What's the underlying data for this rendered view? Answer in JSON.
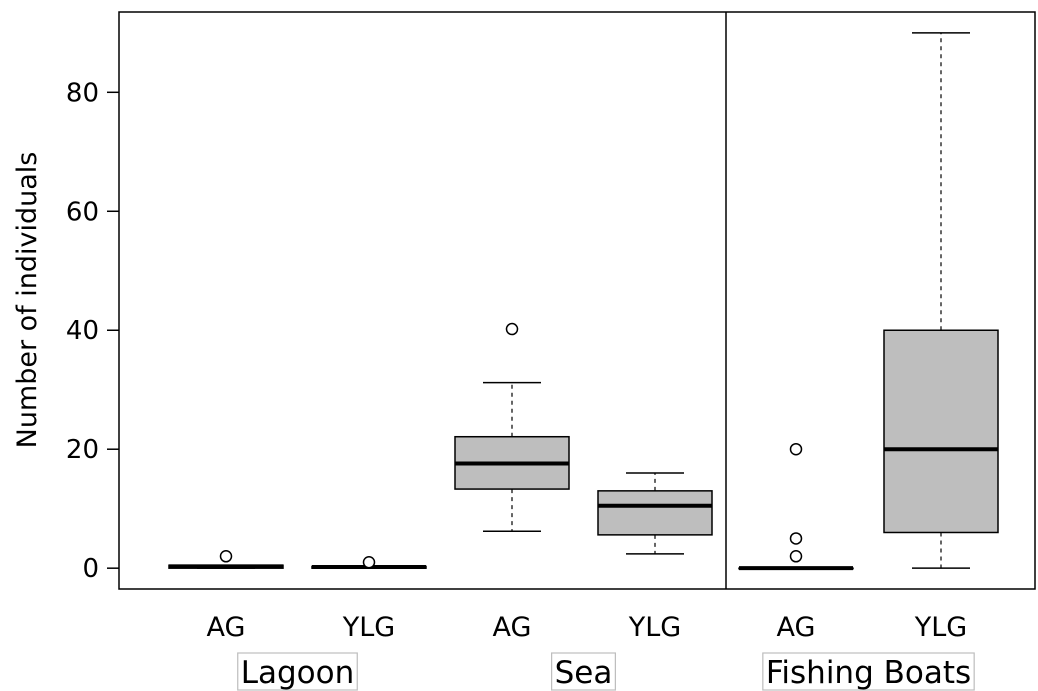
{
  "chart_data": {
    "type": "box",
    "ylabel": "Number of individuals",
    "xlabel": "",
    "ylim": [
      -3.5,
      93.5
    ],
    "yticks": [
      0,
      20,
      40,
      60,
      80
    ],
    "grid": false,
    "box_color": "#bebebe",
    "groups": [
      {
        "label": "Lagoon",
        "boxes": [
          0,
          1
        ]
      },
      {
        "label": "Sea",
        "boxes": [
          2,
          3
        ]
      },
      {
        "label": "Fishing Boats",
        "boxes": [
          4,
          5
        ]
      }
    ],
    "boxes": [
      {
        "label": "AG",
        "group": "Lagoon",
        "whisker_low": 0,
        "q1": 0,
        "median": 0.3,
        "q3": 0.5,
        "whisker_high": 0.5,
        "outliers": [
          2
        ]
      },
      {
        "label": "YLG",
        "group": "Lagoon",
        "whisker_low": 0,
        "q1": 0,
        "median": 0.2,
        "q3": 0.3,
        "whisker_high": 0.3,
        "outliers": [
          1
        ]
      },
      {
        "label": "AG",
        "group": "Sea",
        "whisker_low": 6.2,
        "q1": 13.3,
        "median": 17.6,
        "q3": 22.1,
        "whisker_high": 31.2,
        "outliers": [
          40.2
        ]
      },
      {
        "label": "YLG",
        "group": "Sea",
        "whisker_low": 2.4,
        "q1": 5.6,
        "median": 10.5,
        "q3": 13.0,
        "whisker_high": 16.0,
        "outliers": []
      },
      {
        "label": "AG",
        "group": "Fishing Boats",
        "whisker_low": 0,
        "q1": 0,
        "median": 0,
        "q3": 0,
        "whisker_high": 0,
        "outliers": [
          2,
          5,
          20
        ]
      },
      {
        "label": "YLG",
        "group": "Fishing Boats",
        "whisker_low": 0,
        "q1": 6,
        "median": 20,
        "q3": 40,
        "whisker_high": 90,
        "outliers": []
      }
    ],
    "panel_separator_after_box": 3
  }
}
